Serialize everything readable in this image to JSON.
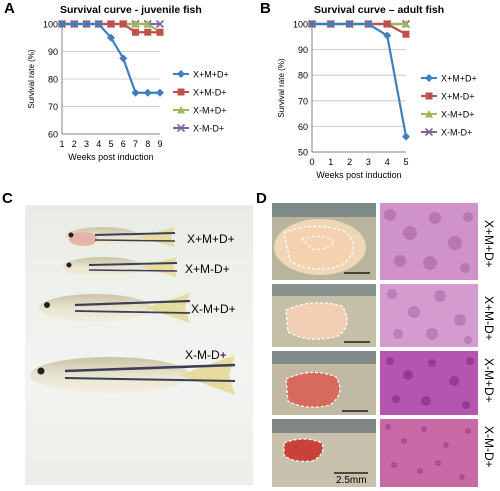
{
  "panels": {
    "A": {
      "letter": "A",
      "title": "Survival curve - juvenile fish"
    },
    "B": {
      "letter": "B",
      "title": "Survival curve – adult fish"
    },
    "C": {
      "letter": "C"
    },
    "D": {
      "letter": "D"
    }
  },
  "chart_data": [
    {
      "type": "line",
      "title": "Survival curve - juvenile fish",
      "xlabel": "Weeks post induction",
      "ylabel": "Survival rate (%)",
      "x": [
        1,
        2,
        3,
        4,
        5,
        6,
        7,
        8,
        9
      ],
      "xlim": [
        1,
        9
      ],
      "ylim": [
        60,
        100
      ],
      "yticks": [
        60,
        70,
        80,
        90,
        100
      ],
      "grid": true,
      "legend": "right",
      "series": [
        {
          "name": "X+M+D+",
          "color": "#3d7fbf",
          "marker": "diamond",
          "values": [
            100,
            100,
            100,
            100,
            95,
            87.5,
            75,
            75,
            75
          ]
        },
        {
          "name": "X+M-D+",
          "color": "#c0504d",
          "marker": "square",
          "values": [
            100,
            100,
            100,
            100,
            100,
            100,
            97,
            97,
            97
          ]
        },
        {
          "name": "X-M+D+",
          "color": "#9bbb59",
          "marker": "triangle",
          "values": [
            100,
            100,
            100,
            100,
            100,
            100,
            100,
            100,
            97
          ]
        },
        {
          "name": "X-M-D+",
          "color": "#8064a2",
          "marker": "x",
          "values": [
            100,
            100,
            100,
            100,
            100,
            100,
            100,
            100,
            100
          ]
        }
      ]
    },
    {
      "type": "line",
      "title": "Survival curve – adult fish",
      "xlabel": "Weeks post induction",
      "ylabel": "Survival rate (%)",
      "x": [
        0,
        1,
        2,
        3,
        4,
        5
      ],
      "xlim": [
        0,
        5
      ],
      "ylim": [
        50,
        100
      ],
      "yticks": [
        50,
        60,
        70,
        80,
        90,
        100
      ],
      "grid": true,
      "legend": "right",
      "series": [
        {
          "name": "X+M+D+",
          "color": "#3d7fbf",
          "marker": "diamond",
          "values": [
            100,
            100,
            100,
            100,
            95.5,
            56
          ]
        },
        {
          "name": "X+M-D+",
          "color": "#c0504d",
          "marker": "square",
          "values": [
            100,
            100,
            100,
            100,
            100,
            96
          ]
        },
        {
          "name": "X-M+D+",
          "color": "#9bbb59",
          "marker": "triangle",
          "values": [
            100,
            100,
            100,
            100,
            100,
            100
          ]
        },
        {
          "name": "X-M-D+",
          "color": "#8064a2",
          "marker": "x",
          "values": [
            100,
            100,
            100,
            100,
            100,
            100
          ]
        }
      ]
    }
  ],
  "panelC": {
    "labels": [
      "X+M+D+",
      "X+M-D+",
      "X-M+D+",
      "X-M-D+"
    ]
  },
  "panelD": {
    "labels": [
      "X+M+D+",
      "X+M-D+",
      "X-M+D+",
      "X-M-D+"
    ],
    "scale_bar": "2.5mm"
  }
}
